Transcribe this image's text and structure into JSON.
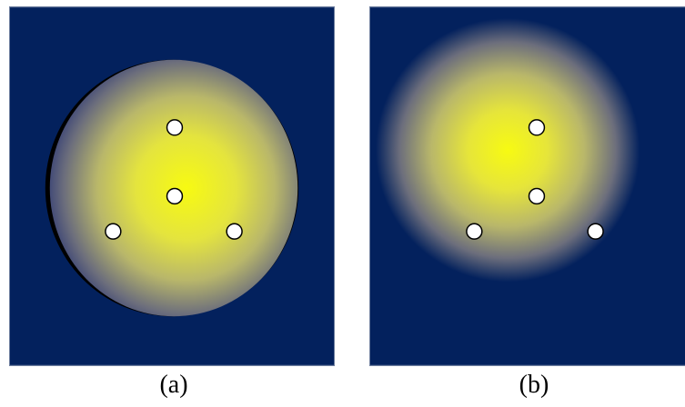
{
  "colors": {
    "background": "#03215d",
    "peak": "#f7fa12",
    "mid": "#b9b76a",
    "edge": "#2f3a75",
    "marker_fill": "#ffffff",
    "marker_stroke": "#000000",
    "border": "#6f7f9f"
  },
  "panels": [
    {
      "id": "a",
      "caption": "(a)"
    },
    {
      "id": "b",
      "caption": "(b)"
    }
  ]
}
